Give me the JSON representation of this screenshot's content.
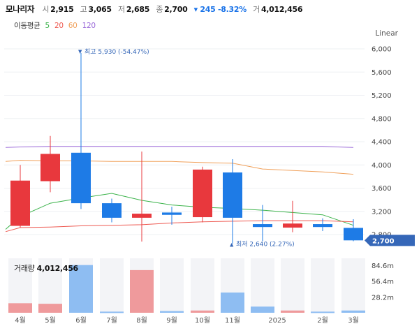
{
  "header": {
    "name": "모나리자",
    "open_label": "시",
    "open": "2,915",
    "high_label": "고",
    "high": "3,065",
    "low_label": "저",
    "low": "2,685",
    "close_label": "종",
    "close": "2,700",
    "change": "▾ 245 -8.32%",
    "volume_label": "거",
    "volume": "4,012,456"
  },
  "ma_legend": {
    "title": "이동평균",
    "items": [
      {
        "label": "5",
        "color": "#3bb34a"
      },
      {
        "label": "20",
        "color": "#ee5a52"
      },
      {
        "label": "60",
        "color": "#f0a05a"
      },
      {
        "label": "120",
        "color": "#9b6ad9"
      }
    ]
  },
  "scale_type": "Linear",
  "volume_panel": {
    "label": "거래량",
    "value": "4,012,456"
  },
  "colors": {
    "up": "#e8383d",
    "down": "#1e7be6",
    "current_tag": "#3567b8"
  },
  "chart_data": {
    "type": "candlestick",
    "price_axis": {
      "ticks": [
        2800,
        3200,
        3600,
        4000,
        4400,
        4800,
        5200,
        5600,
        6000
      ],
      "tick_labels": [
        "2,800",
        "3,200",
        "3,600",
        "4,000",
        "4,400",
        "4,800",
        "5,200",
        "5,600",
        "6,000"
      ]
    },
    "x_labels": [
      "4월",
      "5월",
      "6월",
      "7월",
      "8월",
      "9월",
      "10월",
      "11월",
      "2025",
      "2월",
      "3월"
    ],
    "candles": [
      {
        "open": 2950,
        "high": 4000,
        "low": 2920,
        "close": 3730
      },
      {
        "open": 3720,
        "high": 4500,
        "low": 3530,
        "close": 4190
      },
      {
        "open": 4210,
        "high": 5930,
        "low": 3240,
        "close": 3340
      },
      {
        "open": 3340,
        "high": 3420,
        "low": 3010,
        "close": 3090
      },
      {
        "open": 3090,
        "high": 4230,
        "low": 2680,
        "close": 3160
      },
      {
        "open": 3180,
        "high": 3280,
        "low": 2970,
        "close": 3140
      },
      {
        "open": 3100,
        "high": 3970,
        "low": 3010,
        "close": 3920
      },
      {
        "open": 3870,
        "high": 4100,
        "low": 2640,
        "close": 3090
      },
      {
        "open": 2980,
        "high": 3310,
        "low": 2690,
        "close": 2930
      },
      {
        "open": 2920,
        "high": 3380,
        "low": 2840,
        "close": 2990
      },
      {
        "open": 2980,
        "high": 3080,
        "low": 2860,
        "close": 2930
      },
      {
        "open": 2915,
        "high": 3065,
        "low": 2685,
        "close": 2700
      }
    ],
    "moving_averages": {
      "ma5": [
        2890,
        3110,
        3340,
        3430,
        3510,
        3390,
        3310,
        3270,
        3250,
        3220,
        3140,
        2960
      ],
      "ma20": [
        2850,
        2920,
        2930,
        2950,
        2960,
        2970,
        3000,
        3020,
        3030,
        3040,
        3040,
        3020
      ],
      "ma60": [
        4060,
        4080,
        4070,
        4070,
        4060,
        4060,
        4060,
        4040,
        4030,
        3930,
        3880,
        3840
      ],
      "ma120": [
        4300,
        4310,
        4320,
        4320,
        4320,
        4320,
        4320,
        4320,
        4320,
        4320,
        4320,
        4300
      ]
    },
    "annotations": {
      "high": {
        "label": "최고 5,930 (-54.47%)",
        "value": 5930
      },
      "low": {
        "label": "최저 2,640 (2.27%)",
        "value": 2640
      },
      "current": {
        "label": "2,700",
        "value": 2700
      }
    },
    "volume": {
      "values": [
        17000000,
        16000000,
        85000000,
        2000000,
        76000000,
        3000000,
        4000000,
        36000000,
        11000000,
        4000000,
        2000000,
        4012456
      ],
      "axis_ticks": [
        28200000,
        56400000,
        84600000
      ],
      "axis_labels": [
        "28.2m",
        "56.4m",
        "84.6m"
      ]
    }
  }
}
